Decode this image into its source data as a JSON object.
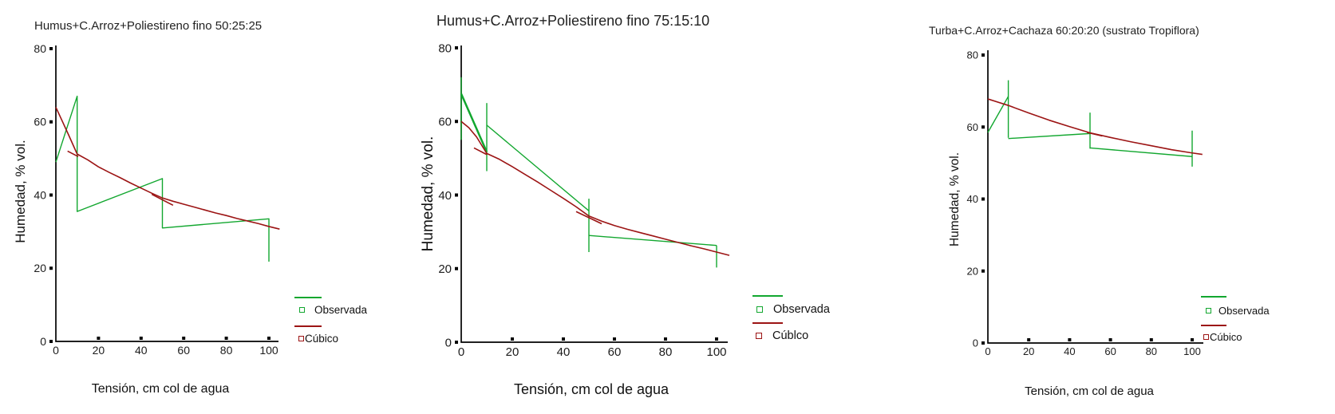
{
  "colors": {
    "observada": "#12a72f",
    "cubico": "#9c1414",
    "axis": "#000000",
    "text": "#1c1c1c"
  },
  "chart_data": [
    {
      "type": "line",
      "title": "Humus+C.Arroz+Poliestireno fino 50:25:25",
      "xlabel": "Tensión, cm col de agua",
      "ylabel": "Humedad, % vol.",
      "xlim": [
        0,
        105
      ],
      "ylim": [
        0,
        80
      ],
      "x_ticks": [
        0,
        20,
        40,
        60,
        80,
        100
      ],
      "y_ticks": [
        0,
        20,
        40,
        60,
        80
      ],
      "grid": false,
      "legend": {
        "position": "inside-bottom-right",
        "entries": [
          "Observada",
          "Cúbico"
        ]
      },
      "series": [
        {
          "name": "Observada",
          "color_key": "observada",
          "marker": "open-square",
          "segments": [
            {
              "points": [
                [
                  0,
                  49
                ],
                [
                  10,
                  67
                ],
                [
                  10,
                  35.5
                ],
                [
                  50,
                  44.5
                ],
                [
                  50,
                  31
                ],
                [
                  100,
                  33.5
                ],
                [
                  100,
                  21.8
                ]
              ]
            }
          ]
        },
        {
          "name": "Cúbico",
          "color_key": "cubico",
          "marker": "open-square",
          "points": [
            [
              0,
              64
            ],
            [
              3,
              60.2
            ],
            [
              6,
              56.4
            ],
            [
              10,
              51.2
            ],
            [
              15,
              49.6
            ],
            [
              20,
              47.7
            ],
            [
              25,
              46.2
            ],
            [
              30,
              44.8
            ],
            [
              35,
              43.3
            ],
            [
              40,
              41.9
            ],
            [
              45,
              40.5
            ],
            [
              50,
              39.2
            ],
            [
              55,
              38.3
            ],
            [
              60,
              37.5
            ],
            [
              65,
              36.7
            ],
            [
              70,
              35.9
            ],
            [
              75,
              35.1
            ],
            [
              80,
              34.4
            ],
            [
              85,
              33.6
            ],
            [
              90,
              32.9
            ],
            [
              95,
              32.2
            ],
            [
              100,
              31.4
            ],
            [
              105,
              30.7
            ]
          ],
          "fit_dashes": [
            [
              [
                5.5,
                52
              ],
              [
                10.5,
                50.5
              ]
            ],
            [
              [
                45,
                40.2
              ],
              [
                55,
                37.2
              ]
            ]
          ]
        }
      ]
    },
    {
      "type": "line",
      "title": "Humus+C.Arroz+Poliestireno fino 75:15:10",
      "xlabel": "Tensión, cm col de agua",
      "ylabel": "Humedad, % vol.",
      "xlim": [
        0,
        105
      ],
      "ylim": [
        0,
        80
      ],
      "x_ticks": [
        0,
        20,
        40,
        60,
        80,
        100
      ],
      "y_ticks": [
        0,
        20,
        40,
        60,
        80
      ],
      "grid": false,
      "legend": {
        "position": "inside-bottom-right",
        "entries": [
          "Observada",
          "Cúblco"
        ]
      },
      "series": [
        {
          "name": "Observada",
          "color_key": "observada",
          "marker": "open-square",
          "segments": [
            {
              "points": [
                [
                  0,
                  55
                ],
                [
                  0,
                  72
                ]
              ]
            },
            {
              "points": [
                [
                  0,
                  67.5
                ],
                [
                  10,
                  51.7
                ]
              ],
              "width": 2.5
            },
            {
              "points": [
                [
                  10,
                  46.5
                ],
                [
                  10,
                  65
                ]
              ]
            },
            {
              "points": [
                [
                  10,
                  59
                ],
                [
                  50,
                  35.7
                ]
              ]
            },
            {
              "points": [
                [
                  50,
                  24.5
                ],
                [
                  50,
                  39
                ]
              ]
            },
            {
              "points": [
                [
                  50,
                  29
                ],
                [
                  100,
                  26.3
                ]
              ]
            },
            {
              "points": [
                [
                  100,
                  20.3
                ],
                [
                  100,
                  26.3
                ]
              ]
            }
          ]
        },
        {
          "name": "Cúblco",
          "color_key": "cubico",
          "marker": "open-square",
          "points": [
            [
              0,
              60
            ],
            [
              3,
              58.3
            ],
            [
              6,
              55.8
            ],
            [
              10,
              51.3
            ],
            [
              15,
              49.7
            ],
            [
              20,
              47.7
            ],
            [
              25,
              45.6
            ],
            [
              30,
              43.5
            ],
            [
              35,
              41.3
            ],
            [
              40,
              39.1
            ],
            [
              45,
              36.8
            ],
            [
              50,
              34.3
            ],
            [
              55,
              32.9
            ],
            [
              60,
              31.7
            ],
            [
              65,
              30.7
            ],
            [
              70,
              29.8
            ],
            [
              75,
              28.9
            ],
            [
              80,
              28
            ],
            [
              85,
              27.1
            ],
            [
              90,
              26.2
            ],
            [
              95,
              25.4
            ],
            [
              100,
              24.5
            ],
            [
              105,
              23.6
            ]
          ],
          "fit_dashes": [
            [
              [
                5,
                52.8
              ],
              [
                10,
                51
              ]
            ],
            [
              [
                45,
                35.5
              ],
              [
                55,
                32.2
              ]
            ]
          ]
        }
      ]
    },
    {
      "type": "line",
      "title": "Turba+C.Arroz+Cachaza 60:20:20 (sustrato Tropiflora)",
      "xlabel": "Tensión, cm col de agua",
      "ylabel": "Humedad, % vol.",
      "xlim": [
        0,
        106
      ],
      "ylim": [
        0,
        80
      ],
      "x_ticks": [
        0,
        20,
        40,
        60,
        80,
        100
      ],
      "y_ticks": [
        0,
        20,
        40,
        60,
        80
      ],
      "grid": false,
      "legend": {
        "position": "inside-bottom-right",
        "entries": [
          "Observada",
          "Cúbico"
        ]
      },
      "series": [
        {
          "name": "Observada",
          "color_key": "observada",
          "marker": "open-square",
          "segments": [
            {
              "points": [
                [
                  0,
                  58.5
                ],
                [
                  10,
                  68.5
                ]
              ]
            },
            {
              "points": [
                [
                  10,
                  57
                ],
                [
                  10,
                  73
                ]
              ]
            },
            {
              "points": [
                [
                  10,
                  56.8
                ],
                [
                  50,
                  58.2
                ]
              ]
            },
            {
              "points": [
                [
                  50,
                  54
                ],
                [
                  50,
                  64
                ]
              ]
            },
            {
              "points": [
                [
                  50,
                  54.2
                ],
                [
                  100,
                  51.8
                ]
              ]
            },
            {
              "points": [
                [
                  100,
                  49
                ],
                [
                  100,
                  59
                ]
              ]
            }
          ]
        },
        {
          "name": "Cúbico",
          "color_key": "cubico",
          "marker": "open-square",
          "points": [
            [
              0,
              67.8
            ],
            [
              10,
              66
            ],
            [
              20,
              63.9
            ],
            [
              30,
              61.9
            ],
            [
              40,
              60.1
            ],
            [
              50,
              58.4
            ],
            [
              60,
              57.1
            ],
            [
              70,
              55.9
            ],
            [
              80,
              54.8
            ],
            [
              90,
              53.7
            ],
            [
              100,
              52.8
            ],
            [
              105,
              52.4
            ]
          ],
          "fit_dashes": [
            [
              [
                48.5,
                58.5
              ],
              [
                56,
                57.5
              ]
            ]
          ]
        }
      ]
    }
  ]
}
